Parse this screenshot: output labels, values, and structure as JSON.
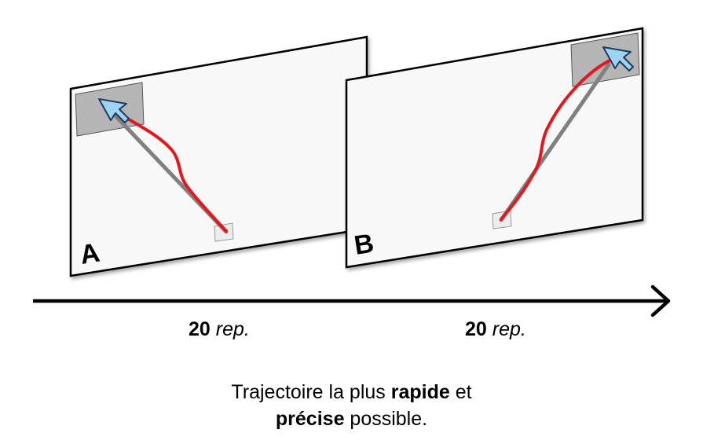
{
  "panels": [
    {
      "letter": "A",
      "repeat_count": "20",
      "repeat_unit": "rep."
    },
    {
      "letter": "B",
      "repeat_count": "20",
      "repeat_unit": "rep."
    }
  ],
  "instruction": {
    "line1_start": "Trajectoire la plus ",
    "line1_bold": "rapide",
    "line1_end": " et",
    "line2_bold": "précise",
    "line2_end": " possible."
  },
  "colors": {
    "screen_fill": "#f8f8f8",
    "screen_stroke": "#000000",
    "target_fill": "#b5b5b5",
    "start_fill": "#ececec",
    "ideal_path": "#808080",
    "actual_path": "#e5161c",
    "cursor_fill": "#9fd3f2",
    "cursor_stroke": "#1f3a5c",
    "timeline": "#000000"
  },
  "icons": {
    "cursor": "arrow-cursor-icon",
    "timeline_head": "arrow-head-icon"
  }
}
